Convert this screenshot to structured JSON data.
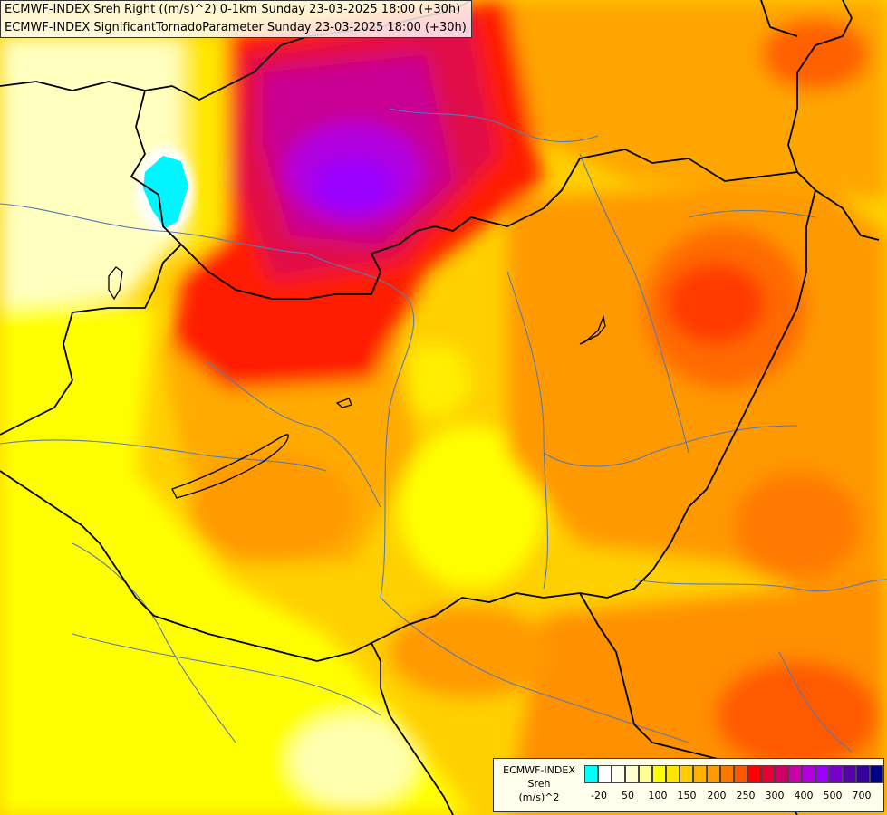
{
  "titles": {
    "line1": "ECMWF-INDEX Sreh Right ((m/s)^2) 0-1km Sunday 23-03-2025 18:00 (+30h)",
    "line2": "ECMWF-INDEX SignificantTornadoParameter Sunday 23-03-2025 18:00 (+30h)"
  },
  "legend": {
    "line1": "ECMWF-INDEX",
    "line2": "Sreh",
    "line3": "(m/s)^2",
    "colors": [
      "#00ffff",
      "#ffffff",
      "#fffff0",
      "#ffffd0",
      "#ffff99",
      "#ffff00",
      "#ffe600",
      "#ffcc00",
      "#ffb300",
      "#ff9900",
      "#ff7700",
      "#ff5500",
      "#ff0000",
      "#e60033",
      "#cc0066",
      "#cc00aa",
      "#b000dd",
      "#9900ff",
      "#7700cc",
      "#5500aa",
      "#330099",
      "#000088"
    ],
    "ticks": [
      "-20",
      "50",
      "100",
      "150",
      "200",
      "250",
      "300",
      "400",
      "500",
      "700"
    ]
  },
  "map": {
    "field_colors": {
      "pale": "#ffffc8",
      "yellow": "#ffff00",
      "gold": "#ffcc00",
      "orange": "#ffaa00",
      "dark_orange": "#ff8800",
      "red_orange": "#ff5500",
      "red": "#ff1a00",
      "crimson": "#e0004a",
      "magenta": "#c00090",
      "purple": "#aa00ee",
      "violet": "#9900ff",
      "cyan": "#00ffff",
      "border": "#000000",
      "river": "#5a78b4"
    }
  }
}
